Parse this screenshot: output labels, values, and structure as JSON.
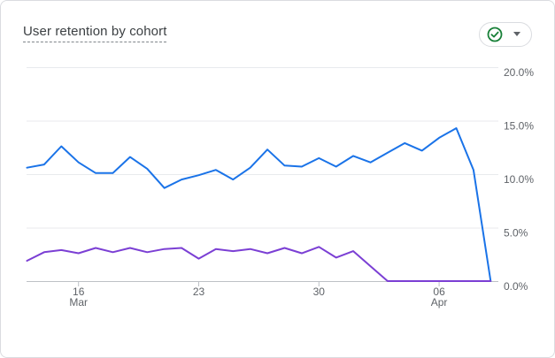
{
  "card": {
    "title": "User retention by cohort"
  },
  "status_button": {
    "icon": "check-circle-icon",
    "status_color": "#188038"
  },
  "chart_data": {
    "type": "line",
    "title": "User retention by cohort",
    "xlabel": "",
    "ylabel": "",
    "ylim": [
      0,
      20
    ],
    "yticks": [
      "20.0%",
      "15.0%",
      "10.0%",
      "5.0%",
      "0.0%"
    ],
    "xticks": [
      {
        "day": "16",
        "month": "Mar",
        "index": 3
      },
      {
        "day": "23",
        "month": "",
        "index": 10
      },
      {
        "day": "30",
        "month": "",
        "index": 17
      },
      {
        "day": "06",
        "month": "Apr",
        "index": 24
      }
    ],
    "grid": true,
    "x": [
      "Mar 13",
      "Mar 14",
      "Mar 15",
      "Mar 16",
      "Mar 17",
      "Mar 18",
      "Mar 19",
      "Mar 20",
      "Mar 21",
      "Mar 22",
      "Mar 23",
      "Mar 24",
      "Mar 25",
      "Mar 26",
      "Mar 27",
      "Mar 28",
      "Mar 29",
      "Mar 30",
      "Mar 31",
      "Apr 1",
      "Apr 2",
      "Apr 3",
      "Apr 4",
      "Apr 5",
      "Apr 6",
      "Apr 7",
      "Apr 8",
      "Apr 9"
    ],
    "series": [
      {
        "color": "#1a73e8",
        "values": [
          10.6,
          10.9,
          12.6,
          11.1,
          10.1,
          10.1,
          11.6,
          10.5,
          8.7,
          9.5,
          9.9,
          10.4,
          9.5,
          10.6,
          12.3,
          10.8,
          10.7,
          11.5,
          10.7,
          11.7,
          11.1,
          12.0,
          12.9,
          12.2,
          13.4,
          14.3,
          10.4,
          0.0
        ]
      },
      {
        "color": "#7b3fd4",
        "values": [
          1.9,
          2.7,
          2.9,
          2.6,
          3.1,
          2.7,
          3.1,
          2.7,
          3.0,
          3.1,
          2.1,
          3.0,
          2.8,
          3.0,
          2.6,
          3.1,
          2.6,
          3.2,
          2.2,
          2.8,
          1.4,
          0.0,
          0.0,
          0.0,
          0.0,
          0.0,
          0.0,
          0.0
        ]
      }
    ]
  }
}
